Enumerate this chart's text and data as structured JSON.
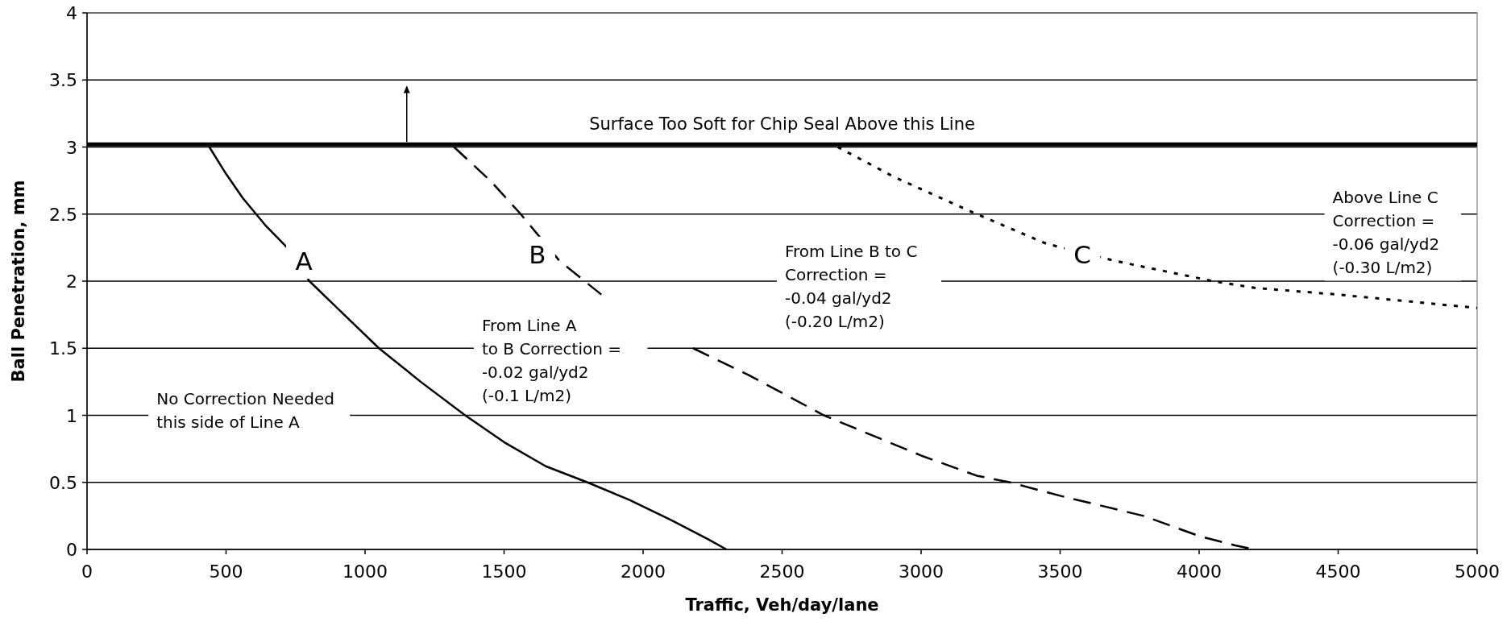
{
  "chart_data": {
    "type": "line",
    "xlabel": "Traffic, Veh/day/lane",
    "ylabel": "Ball Penetration, mm",
    "xlim": [
      0,
      5000
    ],
    "xticks": [
      0,
      500,
      1000,
      1500,
      2000,
      2500,
      3000,
      3500,
      4000,
      4500,
      5000
    ],
    "ylim": [
      0,
      4
    ],
    "yticks": [
      0,
      0.5,
      1,
      1.5,
      2,
      2.5,
      3,
      3.5,
      4
    ],
    "grid": "y",
    "series": [
      {
        "color": "#000000",
        "line_style": "solid",
        "x": [
          440,
          500,
          560,
          640,
          720,
          800,
          900,
          1050,
          1200,
          1360,
          1500,
          1650,
          1800,
          1950,
          2100,
          2230,
          2300
        ],
        "values": [
          3.0,
          2.8,
          2.62,
          2.42,
          2.25,
          2.0,
          1.8,
          1.5,
          1.25,
          1.0,
          0.8,
          0.62,
          0.5,
          0.37,
          0.22,
          0.08,
          0
        ]
      },
      {
        "color": "#000000",
        "line_style": "dashed",
        "x": [
          1320,
          1450,
          1560,
          1700,
          1850,
          2000,
          2180,
          2380,
          2650,
          3000,
          3200,
          3320,
          3500,
          3800,
          4000,
          4130,
          4200
        ],
        "values": [
          3.0,
          2.75,
          2.5,
          2.15,
          1.9,
          null,
          1.5,
          1.3,
          1.0,
          0.7,
          0.55,
          0.5,
          0.4,
          0.25,
          0.1,
          0.03,
          0
        ]
      },
      {
        "color": "#000000",
        "line_style": "dotted",
        "x": [
          2700,
          2900,
          3200,
          3450,
          3700,
          4050,
          4200,
          4500,
          5000
        ],
        "values": [
          3.0,
          2.78,
          2.5,
          2.28,
          2.15,
          2.0,
          1.95,
          1.9,
          1.8
        ]
      }
    ],
    "ref_lines": [
      {
        "axis": "y",
        "value": 3.02,
        "label": "Surface Too Soft for Chip Seal Above this Line",
        "color": "#000000"
      }
    ],
    "annotations": [
      "A",
      "B",
      "C",
      "No Correction Needed\nthis side of Line A",
      "From Line A\nto B Correction =\n-0.02 gal/yd2\n(-0.1 L/m2)",
      "From Line B to C\nCorrection =\n-0.04 gal/yd2\n(-0.20 L/m2)",
      "Above Line C\nCorrection =\n-0.06 gal/yd2\n(-0.30 L/m2)"
    ]
  }
}
